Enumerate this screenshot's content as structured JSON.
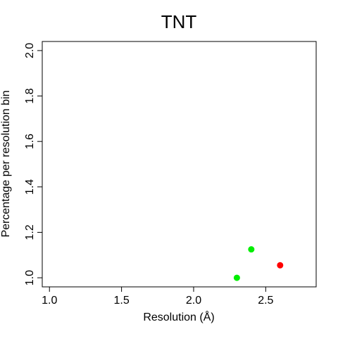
{
  "chart_data": {
    "type": "scatter",
    "title": "TNT",
    "xlabel": "Resolution (Å)",
    "ylabel": "Percentage per resolution bin",
    "xlim": [
      0.95,
      2.85
    ],
    "ylim": [
      0.96,
      2.04
    ],
    "xticks": [
      1.0,
      1.5,
      2.0,
      2.5
    ],
    "xtick_labels": [
      "1.0",
      "1.5",
      "2.0",
      "2.5"
    ],
    "yticks": [
      1.0,
      1.2,
      1.4,
      1.6,
      1.8,
      2.0
    ],
    "ytick_labels": [
      "1.0",
      "1.2",
      "1.4",
      "1.6",
      "1.8",
      "2.0"
    ],
    "grid": false,
    "points": [
      {
        "x": 2.3,
        "y": 1.0,
        "color": "#00ee00"
      },
      {
        "x": 2.4,
        "y": 1.125,
        "color": "#00ee00"
      },
      {
        "x": 2.6,
        "y": 1.055,
        "color": "#ff0000"
      }
    ]
  }
}
